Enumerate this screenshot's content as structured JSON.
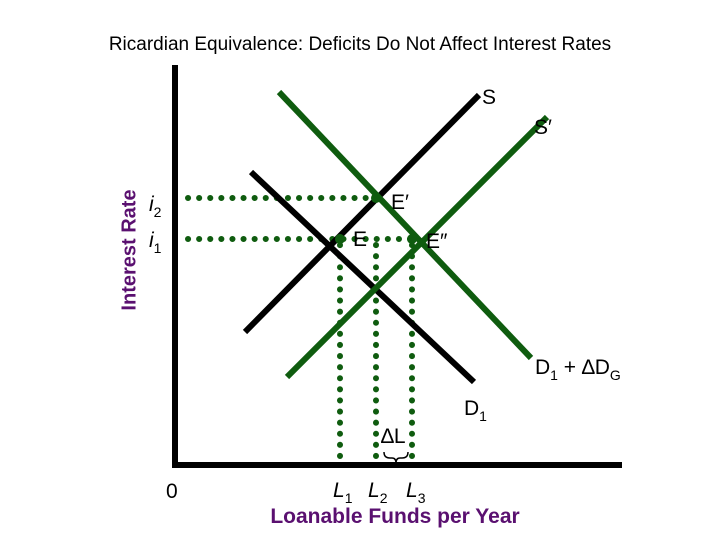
{
  "title": "Ricardian Equivalence: Deficits Do Not Affect Interest Rates",
  "axes": {
    "ylabel": "Interest Rate",
    "xlabel": "Loanable Funds per Year",
    "origin": "0"
  },
  "curves": {
    "supply_original": {
      "label": "S",
      "color": "#000000"
    },
    "supply_shifted": {
      "label": "S′",
      "color": "#0f5c0f"
    },
    "demand_original": {
      "label": "D",
      "subscript": "1",
      "color": "#000000"
    },
    "demand_shifted": {
      "label": "D",
      "subscript": "1",
      "suffix": " + ∆D",
      "suffix_subscript": "G",
      "color": "#0f5c0f"
    }
  },
  "equilibria": {
    "E": "E",
    "E_prime": "E′",
    "E_double_prime": "E″"
  },
  "interest_rates": {
    "i1": {
      "base": "i",
      "subscript": "1"
    },
    "i2": {
      "base": "i",
      "subscript": "2"
    }
  },
  "quantities": {
    "L1": {
      "base": "L",
      "subscript": "1"
    },
    "L2": {
      "base": "L",
      "subscript": "2"
    },
    "L3": {
      "base": "L",
      "subscript": "3"
    }
  },
  "delta_L": "∆L",
  "colors": {
    "dots": "#0f5c0f",
    "black": "#000000",
    "axis_label": "#5a1070"
  }
}
